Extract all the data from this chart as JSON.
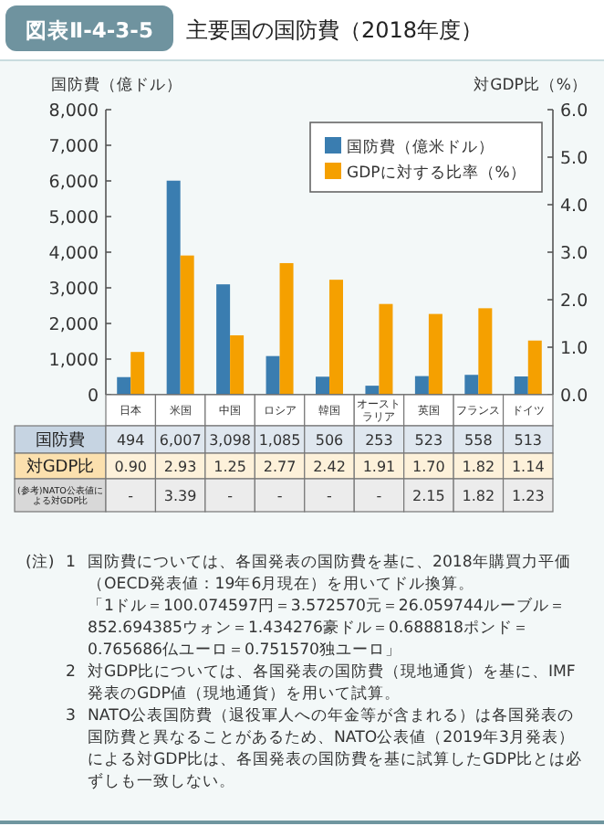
{
  "chart_data": {
    "type": "bar",
    "title": "主要国の国防費（2018年度）",
    "ylabel": "国防費（億ドル）",
    "y2label": "対GDP比（%）",
    "categories": [
      "日本",
      "米国",
      "中国",
      "ロシア",
      "韓国",
      "オーストラリア",
      "英国",
      "フランス",
      "ドイツ"
    ],
    "series": [
      {
        "name": "国防費（億米ドル）",
        "color": "#3a7db0",
        "values": [
          494,
          6007,
          3098,
          1085,
          506,
          253,
          523,
          558,
          513
        ],
        "value_labels": [
          "494",
          "6,007",
          "3,098",
          "1,085",
          "506",
          "253",
          "523",
          "558",
          "513"
        ]
      },
      {
        "name": "GDPに対する比率（%）",
        "color": "#f5a000",
        "axis": "y2",
        "values": [
          0.9,
          2.93,
          1.25,
          2.77,
          2.42,
          1.91,
          1.7,
          1.82,
          1.14
        ],
        "value_labels": [
          "0.90",
          "2.93",
          "1.25",
          "2.77",
          "2.42",
          "1.91",
          "1.70",
          "1.82",
          "1.14"
        ]
      }
    ],
    "ylim": [
      0,
      8000
    ],
    "yticks": [
      0,
      {
        "value": 1000,
        "label": "1,000"
      },
      {
        "value": 2000,
        "label": "2,000"
      },
      {
        "value": 3000,
        "label": "3,000"
      },
      {
        "value": 4000,
        "label": "4,000"
      },
      {
        "value": 5000,
        "label": "5,000"
      },
      {
        "value": 6000,
        "label": "6,000"
      },
      {
        "value": 7000,
        "label": "7,000"
      },
      {
        "value": 8000,
        "label": "8,000"
      }
    ],
    "y2lim": [
      0,
      6
    ],
    "y2ticks": [
      {
        "value": 0,
        "label": "0.0"
      },
      {
        "value": 1,
        "label": "1.0"
      },
      {
        "value": 2,
        "label": "2.0"
      },
      {
        "value": 3,
        "label": "3.0"
      },
      {
        "value": 4,
        "label": "4.0"
      },
      {
        "value": 5,
        "label": "5.0"
      },
      {
        "value": 6,
        "label": "6.0"
      }
    ],
    "legend": "top right",
    "grid": false,
    "annotations": [
      "図表Ⅱ-4-3-5",
      "国防費",
      "対GDP比",
      "(参考)NATO公表値による対GDP比",
      "-",
      "3.39",
      "-",
      "-",
      "-",
      "-",
      "2.15",
      "1.82",
      "1.23",
      "(注)",
      "1",
      "国防費については、各国発表の国防費を基に、2018年購買力平価（OECD発表値：19年6月現在）を用いてドル換算。",
      "「1ドル＝100.074597円＝3.572570元＝26.059744ルーブル＝852.694385ウォン＝1.434276豪ドル＝0.688818ポンド＝0.765686仏ユーロ＝0.751570独ユーロ」",
      "2",
      "対GDP比については、各国発表の国防費（現地通貨）を基に、IMF発表のGDP値（現地通貨）を用いて試算。",
      "3",
      "NATO公表国防費（退役軍人への年金等が含まれる）は各国発表の国防費と異なることがあるため、NATO公表値（2019年3月発表）による対GDP比は、各国発表の国防費を基に試算したGDP比とは必ずしも一致しない。"
    ]
  }
}
